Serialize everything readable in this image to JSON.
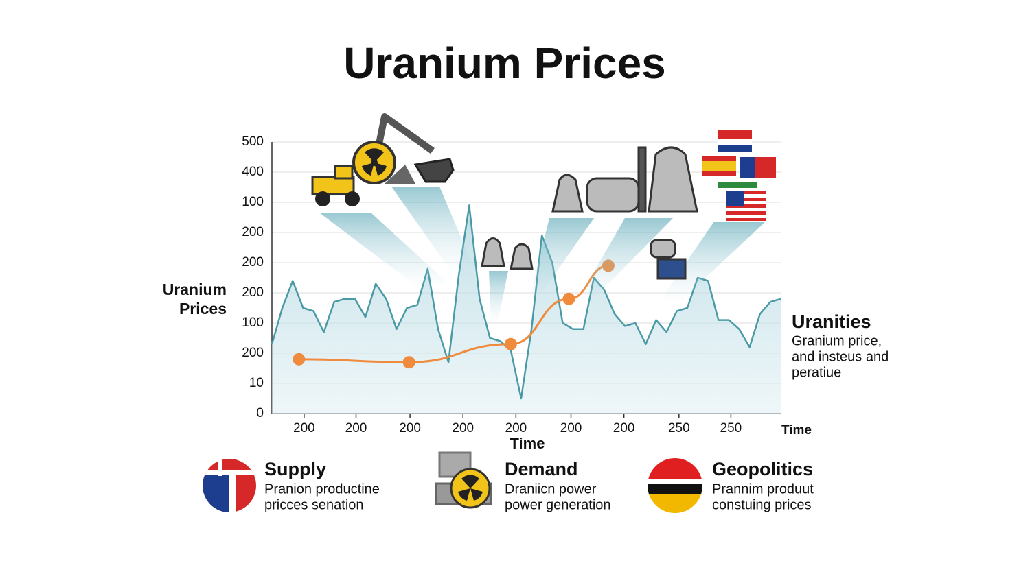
{
  "chart_data": {
    "type": "line",
    "title": "Uranium Prices",
    "y_label": "Uranium Prices",
    "x_label": "Time",
    "ylim": [
      0,
      9
    ],
    "yticks": [
      0,
      {
        "value": 1,
        "label": "10"
      },
      {
        "value": 2,
        "label": "200"
      },
      {
        "value": 3,
        "label": "100"
      },
      {
        "value": 4,
        "label": "200"
      },
      {
        "value": 5,
        "label": "200"
      },
      {
        "value": 6,
        "label": "200"
      },
      {
        "value": 7,
        "label": "100"
      },
      {
        "value": 8,
        "label": "400"
      },
      {
        "value": 9,
        "label": "500"
      }
    ],
    "xlim": [
      0,
      49
    ],
    "xticks": [
      {
        "value": 3.1,
        "label": "200"
      },
      {
        "value": 8.1,
        "label": "200"
      },
      {
        "value": 13.3,
        "label": "200"
      },
      {
        "value": 18.4,
        "label": "200"
      },
      {
        "value": 23.5,
        "label": "200"
      },
      {
        "value": 28.8,
        "label": "200"
      },
      {
        "value": 33.9,
        "label": "200"
      },
      {
        "value": 39.2,
        "label": "250"
      },
      {
        "value": 44.2,
        "label": "250"
      }
    ],
    "grid": true,
    "series": [
      {
        "color": "#4a9aa5",
        "area": true,
        "x": [
          0,
          1,
          2,
          3,
          4,
          5,
          6,
          7,
          8,
          9,
          10,
          11,
          12,
          13,
          14,
          15,
          16,
          17,
          18,
          19,
          20,
          21,
          22,
          23,
          24,
          25,
          26,
          27,
          28,
          29,
          30,
          31,
          32,
          33,
          34,
          35,
          36,
          37,
          38,
          39,
          40,
          41,
          42,
          43,
          44,
          45,
          46,
          47,
          48,
          49
        ],
        "values": [
          2.3,
          3.5,
          4.4,
          3.5,
          3.4,
          2.7,
          3.7,
          3.8,
          3.8,
          3.2,
          4.3,
          3.8,
          2.8,
          3.5,
          3.6,
          4.8,
          2.8,
          1.7,
          4.6,
          6.9,
          3.8,
          2.5,
          2.4,
          2.1,
          0.5,
          2.8,
          5.9,
          5.0,
          3.0,
          2.8,
          2.8,
          4.5,
          4.1,
          3.3,
          2.9,
          3.0,
          2.3,
          3.1,
          2.7,
          3.4,
          3.5,
          4.5,
          4.4,
          3.1,
          3.1,
          2.8,
          2.2,
          3.3,
          3.7,
          3.8
        ]
      },
      {
        "color": "#f08a3c",
        "markers": true,
        "x": [
          2.6,
          13.2,
          23,
          28.6,
          32.4
        ],
        "values": [
          1.8,
          1.7,
          2.3,
          3.8,
          4.9
        ]
      }
    ],
    "side_note": {
      "title": "Uranities",
      "lines": [
        "Granium price,",
        "and insteus and",
        "peratiue"
      ]
    },
    "factors": [
      {
        "title": "Supply",
        "lines": [
          "Pranion productine",
          "pricces senation"
        ]
      },
      {
        "title": "Demand",
        "lines": [
          "Draniicn power",
          "power generation"
        ]
      },
      {
        "title": "Geopolitics",
        "lines": [
          "Prannim produut",
          "constuing prices"
        ]
      }
    ]
  }
}
